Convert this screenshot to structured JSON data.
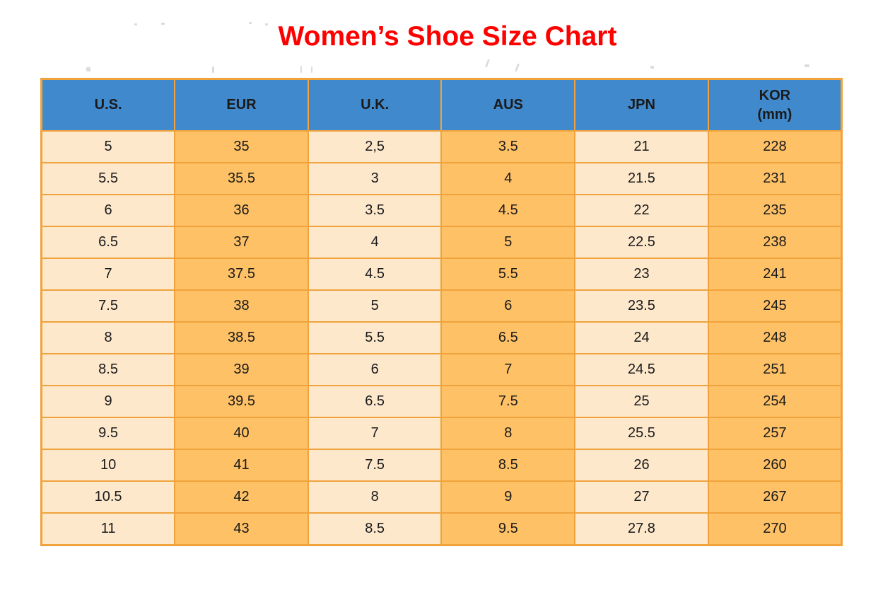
{
  "title": "Women’s Shoe Size Chart",
  "colors": {
    "title_red": "#fe0000",
    "header_blue": "#4189cd",
    "cell_cream": "#fde8cc",
    "cell_orange": "#ffc166",
    "border_orange": "#f0a33c",
    "text_black": "#1a1a1a"
  },
  "chart_data": {
    "type": "table",
    "title": "Women’s Shoe Size Chart",
    "columns": [
      {
        "label": "U.S.",
        "lines": [
          "U.S."
        ],
        "stripe": "cream"
      },
      {
        "label": "EUR",
        "lines": [
          "EUR"
        ],
        "stripe": "orange"
      },
      {
        "label": "U.K.",
        "lines": [
          "U.K."
        ],
        "stripe": "cream"
      },
      {
        "label": "AUS",
        "lines": [
          "AUS"
        ],
        "stripe": "orange"
      },
      {
        "label": "JPN",
        "lines": [
          "JPN"
        ],
        "stripe": "cream"
      },
      {
        "label": "KOR (mm)",
        "lines": [
          "KOR",
          "(mm)"
        ],
        "stripe": "orange"
      }
    ],
    "rows": [
      [
        "5",
        "35",
        "2,5",
        "3.5",
        "21",
        "228"
      ],
      [
        "5.5",
        "35.5",
        "3",
        "4",
        "21.5",
        "231"
      ],
      [
        "6",
        "36",
        "3.5",
        "4.5",
        "22",
        "235"
      ],
      [
        "6.5",
        "37",
        "4",
        "5",
        "22.5",
        "238"
      ],
      [
        "7",
        "37.5",
        "4.5",
        "5.5",
        "23",
        "241"
      ],
      [
        "7.5",
        "38",
        "5",
        "6",
        "23.5",
        "245"
      ],
      [
        "8",
        "38.5",
        "5.5",
        "6.5",
        "24",
        "248"
      ],
      [
        "8.5",
        "39",
        "6",
        "7",
        "24.5",
        "251"
      ],
      [
        "9",
        "39.5",
        "6.5",
        "7.5",
        "25",
        "254"
      ],
      [
        "9.5",
        "40",
        "7",
        "8",
        "25.5",
        "257"
      ],
      [
        "10",
        "41",
        "7.5",
        "8.5",
        "26",
        "260"
      ],
      [
        "10.5",
        "42",
        "8",
        "9",
        "27",
        "267"
      ],
      [
        "11",
        "43",
        "8.5",
        "9.5",
        "27.8",
        "270"
      ]
    ]
  }
}
